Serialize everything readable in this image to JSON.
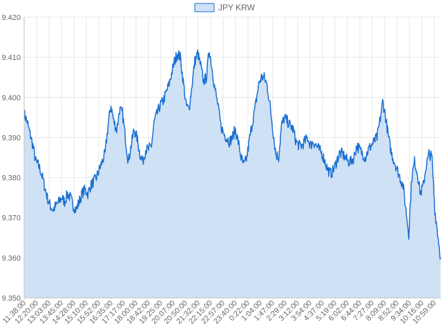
{
  "chart_data": {
    "type": "area",
    "legend": {
      "position": "top-center",
      "label": "JPY KRW"
    },
    "colors": {
      "line": "#1a6fd1",
      "fill": "#cfe1f5",
      "legend_box_fill": "#cfe1f5",
      "legend_box_border": "#1a6fd1"
    },
    "grid": true,
    "ylim": [
      9.35,
      9.42
    ],
    "yticks": [
      "9.350",
      "9.360",
      "9.370",
      "9.380",
      "9.390",
      "9.400",
      "9.410",
      "9.420"
    ],
    "xticks": [
      "11:38:00",
      "12:20:00",
      "13:03:00",
      "13:45:00",
      "14:28:00",
      "15:10:00",
      "15:52:00",
      "16:35:00",
      "17:17:00",
      "18:00:00",
      "18:42:00",
      "19:25:00",
      "20:07:00",
      "20:50:00",
      "21:32:00",
      "22:15:00",
      "22:57:00",
      "23:40:00",
      "0:22:00",
      "1:04:00",
      "1:47:00",
      "2:29:00",
      "3:12:00",
      "3:54:00",
      "4:37:00",
      "5:19:00",
      "6:02:00",
      "6:44:00",
      "7:27:00",
      "8:09:00",
      "8:52:00",
      "9:34:00",
      "10:16:00",
      "10:59:00"
    ],
    "series": [
      {
        "name": "JPY KRW",
        "x_range": [
          0,
          1
        ],
        "values": [
          9.396,
          9.394,
          9.391,
          9.388,
          9.384,
          9.383,
          9.381,
          9.378,
          9.375,
          9.373,
          9.372,
          9.373,
          9.374,
          9.375,
          9.374,
          9.376,
          9.375,
          9.373,
          9.372,
          9.374,
          9.376,
          9.377,
          9.376,
          9.378,
          9.379,
          9.38,
          9.382,
          9.384,
          9.386,
          9.393,
          9.398,
          9.394,
          9.392,
          9.397,
          9.396,
          9.39,
          9.384,
          9.388,
          9.392,
          9.39,
          9.386,
          9.384,
          9.387,
          9.387,
          9.388,
          9.394,
          9.396,
          9.398,
          9.399,
          9.401,
          9.403,
          9.406,
          9.409,
          9.411,
          9.41,
          9.404,
          9.398,
          9.397,
          9.403,
          9.409,
          9.411,
          9.408,
          9.404,
          9.405,
          9.412,
          9.407,
          9.402,
          9.398,
          9.393,
          9.391,
          9.39,
          9.389,
          9.39,
          9.392,
          9.389,
          9.385,
          9.383,
          9.385,
          9.39,
          9.394,
          9.398,
          9.403,
          9.405,
          9.405,
          9.403,
          9.398,
          9.392,
          9.386,
          9.385,
          9.393,
          9.395,
          9.394,
          9.393,
          9.392,
          9.389,
          9.388,
          9.388,
          9.389,
          9.39,
          9.388,
          9.389,
          9.388,
          9.387,
          9.386,
          9.384,
          9.382,
          9.381,
          9.382,
          9.384,
          9.386,
          9.386,
          9.385,
          9.384,
          9.384,
          9.385,
          9.388,
          9.387,
          9.386,
          9.385,
          9.387,
          9.388,
          9.389,
          9.39,
          9.394,
          9.399,
          9.395,
          9.39,
          9.386,
          9.384,
          9.382,
          9.38,
          9.378,
          9.372,
          9.366,
          9.38,
          9.384,
          9.381,
          9.376,
          9.378,
          9.383,
          9.386,
          9.385,
          9.372,
          9.366,
          9.36
        ]
      }
    ]
  }
}
